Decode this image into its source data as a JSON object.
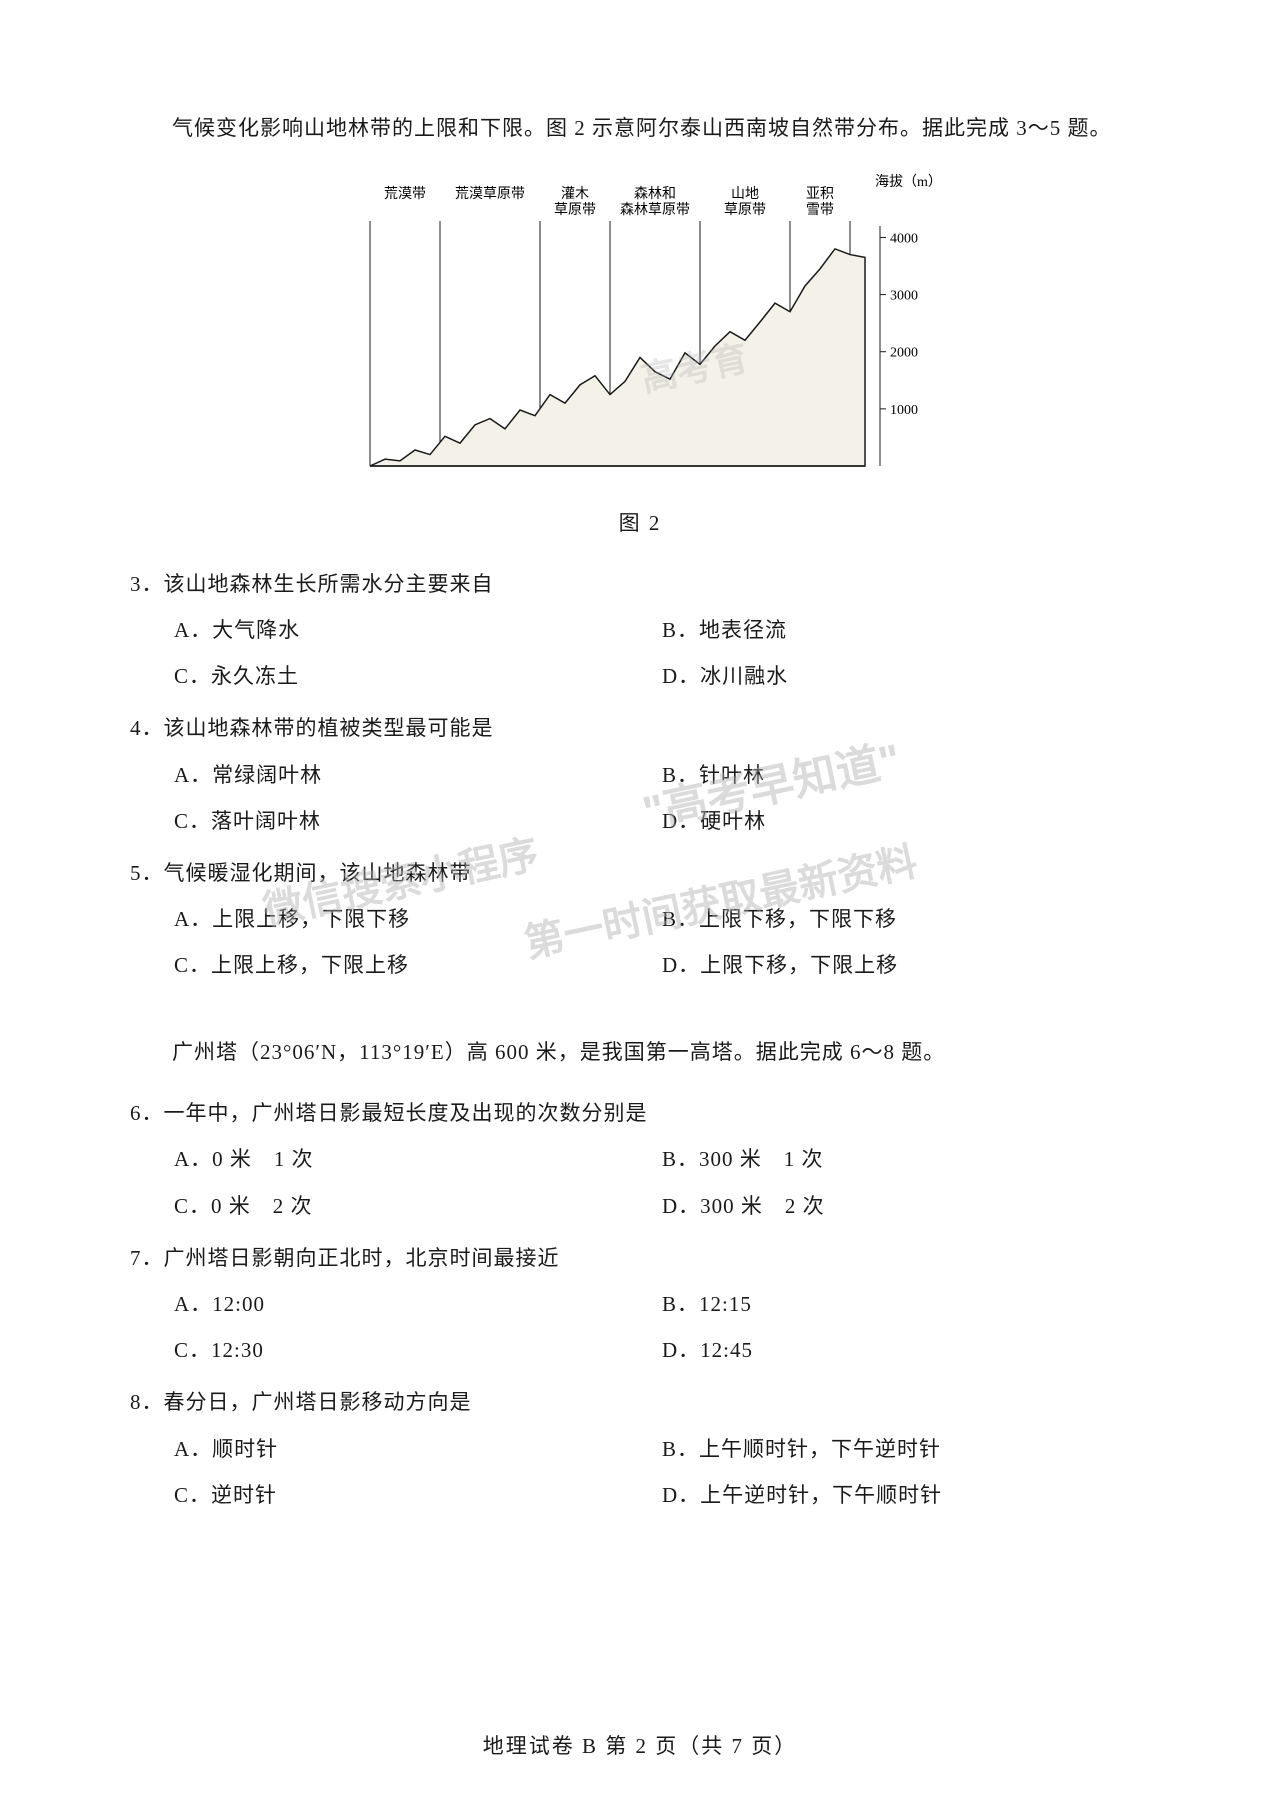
{
  "passage1_intro": "气候变化影响山地林带的上限和下限。图 2 示意阿尔泰山西南坡自然带分布。据此完成 3～5 题。",
  "figure2": {
    "caption": "图 2",
    "y_axis_label": "海拔（m）",
    "y_ticks": [
      "1000",
      "2000",
      "3000",
      "4000"
    ],
    "y_tick_values": [
      1000,
      2000,
      3000,
      4000
    ],
    "ylim": [
      0,
      4200
    ],
    "zones": [
      "荒漠带",
      "荒漠草原带",
      "灌木\n草原带",
      "森林和\n森林草原带",
      "山地\n草原带",
      "亚积\n雪带"
    ],
    "zone_boundaries_x": [
      40,
      110,
      210,
      280,
      370,
      460,
      520
    ],
    "profile": [
      [
        40,
        0
      ],
      [
        55,
        120
      ],
      [
        70,
        90
      ],
      [
        85,
        280
      ],
      [
        100,
        200
      ],
      [
        115,
        520
      ],
      [
        130,
        400
      ],
      [
        145,
        720
      ],
      [
        160,
        830
      ],
      [
        175,
        650
      ],
      [
        190,
        980
      ],
      [
        205,
        880
      ],
      [
        220,
        1250
      ],
      [
        235,
        1100
      ],
      [
        250,
        1420
      ],
      [
        265,
        1580
      ],
      [
        280,
        1250
      ],
      [
        295,
        1480
      ],
      [
        310,
        1900
      ],
      [
        325,
        1650
      ],
      [
        340,
        1520
      ],
      [
        355,
        1980
      ],
      [
        370,
        1780
      ],
      [
        385,
        2100
      ],
      [
        400,
        2350
      ],
      [
        415,
        2200
      ],
      [
        430,
        2520
      ],
      [
        445,
        2850
      ],
      [
        460,
        2700
      ],
      [
        475,
        3150
      ],
      [
        490,
        3450
      ],
      [
        505,
        3800
      ],
      [
        520,
        3700
      ],
      [
        535,
        3650
      ]
    ],
    "fill_color": "#f4f2e8",
    "line_color": "#1a1a1a",
    "tick_color": "#1a1a1a",
    "background_color": "#ffffff",
    "line_width": 1.5,
    "label_fontsize": 14
  },
  "q3": {
    "stem": "3．该山地森林生长所需水分主要来自",
    "A": "A．大气降水",
    "B": "B．地表径流",
    "C": "C．永久冻土",
    "D": "D．冰川融水"
  },
  "q4": {
    "stem": "4．该山地森林带的植被类型最可能是",
    "A": "A．常绿阔叶林",
    "B": "B．针叶林",
    "C": "C．落叶阔叶林",
    "D": "D．硬叶林"
  },
  "q5": {
    "stem": "5．气候暖湿化期间，该山地森林带",
    "A": "A．上限上移，下限下移",
    "B": "B．上限下移，下限下移",
    "C": "C．上限上移，下限上移",
    "D": "D．上限下移，下限上移"
  },
  "passage2_intro": "广州塔（23°06′N，113°19′E）高 600 米，是我国第一高塔。据此完成 6～8 题。",
  "q6": {
    "stem": "6．一年中，广州塔日影最短长度及出现的次数分别是",
    "A": "A．0 米　1 次",
    "B": "B．300 米　1 次",
    "C": "C．0 米　2 次",
    "D": "D．300 米　2 次"
  },
  "q7": {
    "stem": "7．广州塔日影朝向正北时，北京时间最接近",
    "A": "A．12:00",
    "B": "B．12:15",
    "C": "C．12:30",
    "D": "D．12:45"
  },
  "q8": {
    "stem": "8．春分日，广州塔日影移动方向是",
    "A": "A．顺时针",
    "B": "B．上午顺时针，下午逆时针",
    "C": "C．逆时针",
    "D": "D．上午逆时针，下午顺时针"
  },
  "footer": "地理试卷 B 第 2 页（共 7 页）",
  "watermarks": {
    "wm1": "\"高考早知道\"",
    "wm2": "微信搜索小程序",
    "wm3": "第一时间获取最新资料",
    "wm4": "高考育"
  }
}
